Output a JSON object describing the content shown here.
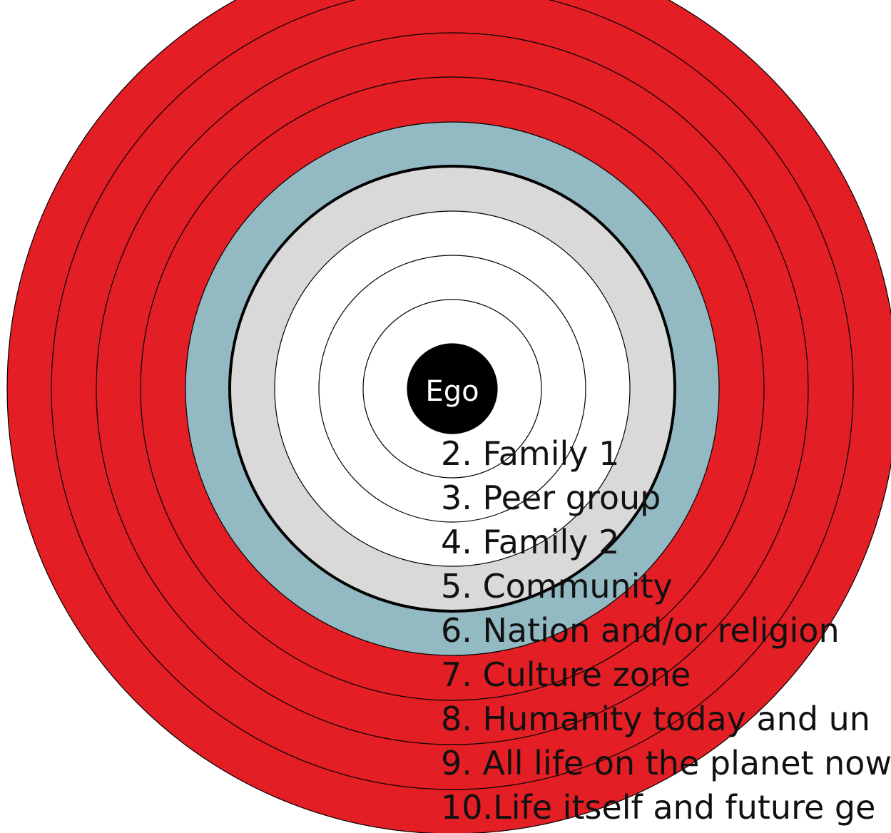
{
  "center": {
    "label": "Ego"
  },
  "labels": [
    "2. Family 1",
    "3. Peer group",
    "4. Family 2",
    "5. Community",
    "6. Nation and/or religion",
    "7. Culture zone",
    "8. Humanity today and un",
    "9. All life on the planet now",
    "10.Life itself and future ge"
  ]
}
